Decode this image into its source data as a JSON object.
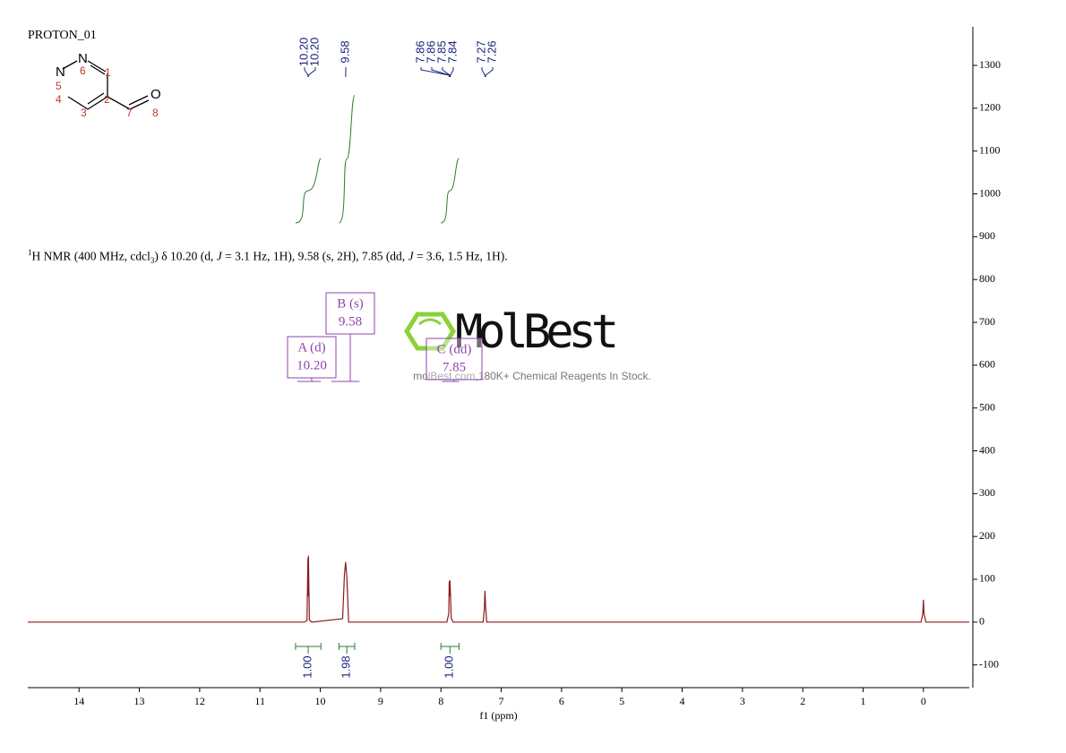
{
  "chart_data": {
    "type": "nmr",
    "title": "PROTON_01",
    "xlabel": "f1 (ppm)",
    "xlim": [
      14.85,
      -0.76
    ],
    "xticks": [
      14,
      13,
      12,
      11,
      10,
      9,
      8,
      7,
      6,
      5,
      4,
      3,
      2,
      1,
      0
    ],
    "ylim": [
      -153,
      1390
    ],
    "yticks": [
      -100,
      0,
      100,
      200,
      300,
      400,
      500,
      600,
      700,
      800,
      900,
      1000,
      1100,
      1200,
      1300
    ],
    "series": [
      {
        "name": "1H",
        "color": "#8b1a1a",
        "x": [
          14.85,
          10.26,
          10.22,
          10.205,
          10.2,
          10.197,
          10.18,
          10.14,
          9.63,
          9.6,
          9.58,
          9.56,
          9.53,
          7.9,
          7.87,
          7.862,
          7.857,
          7.851,
          7.843,
          7.83,
          7.8,
          7.3,
          7.28,
          7.27,
          7.26,
          7.24,
          0.04,
          0.01,
          0.0,
          -0.01,
          -0.04,
          -0.76
        ],
        "values": [
          0,
          0,
          4,
          150,
          60,
          155,
          5,
          0,
          8,
          110,
          140,
          105,
          0,
          0,
          20,
          95,
          60,
          98,
          70,
          10,
          0,
          0,
          30,
          73,
          40,
          0,
          0,
          20,
          52,
          20,
          0,
          0
        ]
      }
    ],
    "peak_labels": [
      {
        "value": 10.203,
        "label": "10.20"
      },
      {
        "value": 10.197,
        "label": "10.20"
      },
      9.58,
      {
        "value": 7.862,
        "label": "7.86"
      },
      {
        "value": 7.857,
        "label": "7.86"
      },
      {
        "value": 7.851,
        "label": "7.85"
      },
      {
        "value": 7.843,
        "label": "7.84"
      },
      7.27,
      7.26
    ],
    "integrals": {
      "ranges": [
        [
          10.41,
          9.99
        ],
        [
          9.69,
          9.43
        ],
        [
          8.0,
          7.7
        ]
      ],
      "values": [
        1,
        1.98,
        1
      ],
      "value_labels": [
        "1.00",
        "1.98",
        "1.00"
      ]
    },
    "multiplets": [
      {
        "label": "A (d)",
        "shift": "10.20"
      },
      {
        "label": "B (s)",
        "shift": "9.58"
      },
      {
        "label": "C (dd)",
        "shift": "7.85"
      }
    ],
    "description": [
      "1",
      "H NMR (400 MHz, cdcl",
      "3",
      ") δ 10.20 (d, ",
      "J",
      " = 3.1 Hz, 1H), 9.58 (s, 2H), 7.85 (dd, ",
      "J",
      " = 3.6, 1.5 Hz, 1H)."
    ],
    "molecule": {
      "atoms": [
        "N",
        "N",
        "O"
      ],
      "numbers": [
        1,
        2,
        3,
        4,
        5,
        6,
        7,
        8
      ]
    },
    "watermark": {
      "brand": "MolBest",
      "tagline": "molBest.com,180K+ Chemical Reagents In Stock."
    }
  }
}
